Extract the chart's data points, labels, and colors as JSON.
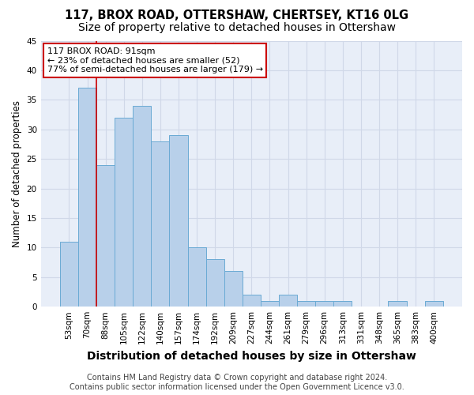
{
  "title1": "117, BROX ROAD, OTTERSHAW, CHERTSEY, KT16 0LG",
  "title2": "Size of property relative to detached houses in Ottershaw",
  "xlabel": "Distribution of detached houses by size in Ottershaw",
  "ylabel": "Number of detached properties",
  "bar_labels": [
    "53sqm",
    "70sqm",
    "88sqm",
    "105sqm",
    "122sqm",
    "140sqm",
    "157sqm",
    "174sqm",
    "192sqm",
    "209sqm",
    "227sqm",
    "244sqm",
    "261sqm",
    "279sqm",
    "296sqm",
    "313sqm",
    "331sqm",
    "348sqm",
    "365sqm",
    "383sqm",
    "400sqm"
  ],
  "bar_values": [
    11,
    37,
    24,
    32,
    34,
    28,
    29,
    10,
    8,
    6,
    2,
    1,
    2,
    1,
    1,
    1,
    0,
    0,
    1,
    0,
    1
  ],
  "bar_color": "#b8d0ea",
  "bar_edge_color": "#6aaad4",
  "annotation_box_text": "117 BROX ROAD: 91sqm\n← 23% of detached houses are smaller (52)\n77% of semi-detached houses are larger (179) →",
  "annotation_box_color": "#ffffff",
  "annotation_box_edge_color": "#cc0000",
  "vline_x_index": 1.5,
  "vline_color": "#cc0000",
  "grid_color": "#d0d8e8",
  "background_color": "#e8eef8",
  "footer_text": "Contains HM Land Registry data © Crown copyright and database right 2024.\nContains public sector information licensed under the Open Government Licence v3.0.",
  "ylim": [
    0,
    45
  ],
  "yticks": [
    0,
    5,
    10,
    15,
    20,
    25,
    30,
    35,
    40,
    45
  ],
  "title1_fontsize": 10.5,
  "title2_fontsize": 10,
  "xlabel_fontsize": 10,
  "ylabel_fontsize": 8.5,
  "tick_fontsize": 7.5,
  "footer_fontsize": 7,
  "annot_fontsize": 8
}
